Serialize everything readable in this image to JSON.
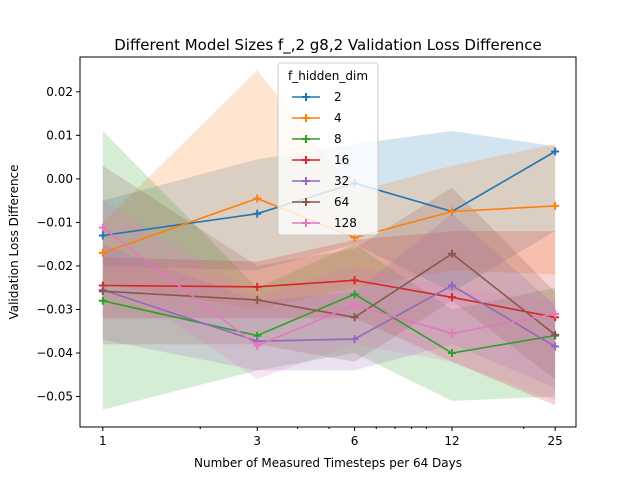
{
  "chart_data": {
    "type": "line",
    "title": "Different Model Sizes f_,2 g8,2 Validation Loss Difference",
    "xlabel": "Number of Measured Timesteps per 64 Days",
    "ylabel": "Validation Loss Difference",
    "xscale": "log",
    "x": [
      1,
      3,
      6,
      12,
      25
    ],
    "xticks": [
      "1",
      "3",
      "6",
      "12",
      "25"
    ],
    "ylim": [
      -0.057,
      0.028
    ],
    "xlim": [
      0.85,
      29
    ],
    "yticks": [
      "0.02",
      "0.01",
      "0.00",
      "−0.01",
      "−0.02",
      "−0.03",
      "−0.04",
      "−0.05"
    ],
    "ytick_values": [
      0.02,
      0.01,
      0.0,
      -0.01,
      -0.02,
      -0.03,
      -0.04,
      -0.05
    ],
    "grid": false,
    "legend": {
      "title": "f_hidden_dim",
      "placement": "top-center"
    },
    "series": [
      {
        "name": "2",
        "color": "#1f77b4",
        "values": [
          -0.013,
          -0.008,
          -0.001,
          -0.0075,
          0.0063
        ],
        "lower": [
          -0.02,
          -0.021,
          -0.015,
          -0.026,
          -0.012
        ],
        "upper": [
          -0.005,
          0.0045,
          0.008,
          0.011,
          0.0075
        ]
      },
      {
        "name": "4",
        "color": "#ff7f0e",
        "values": [
          -0.017,
          -0.0045,
          -0.0135,
          -0.0075,
          -0.0062
        ],
        "lower": [
          -0.024,
          -0.03,
          -0.025,
          -0.021,
          -0.022
        ],
        "upper": [
          -0.01,
          0.025,
          -0.003,
          0.003,
          0.008
        ]
      },
      {
        "name": "8",
        "color": "#2ca02c",
        "values": [
          -0.028,
          -0.036,
          -0.0265,
          -0.04,
          -0.036
        ],
        "lower": [
          -0.053,
          -0.044,
          -0.04,
          -0.051,
          -0.05
        ],
        "upper": [
          0.011,
          -0.025,
          -0.015,
          -0.03,
          -0.025
        ]
      },
      {
        "name": "16",
        "color": "#d62728",
        "values": [
          -0.0245,
          -0.0248,
          -0.0233,
          -0.0272,
          -0.0318
        ],
        "lower": [
          -0.032,
          -0.032,
          -0.032,
          -0.042,
          -0.052
        ],
        "upper": [
          -0.018,
          -0.019,
          -0.014,
          -0.012,
          -0.012
        ]
      },
      {
        "name": "32",
        "color": "#9467bd",
        "values": [
          -0.0255,
          -0.0373,
          -0.0368,
          -0.0245,
          -0.0385
        ],
        "lower": [
          -0.037,
          -0.044,
          -0.044,
          -0.038,
          -0.048
        ],
        "upper": [
          -0.015,
          -0.028,
          -0.026,
          -0.008,
          -0.029
        ]
      },
      {
        "name": "64",
        "color": "#8c564b",
        "values": [
          -0.0258,
          -0.0278,
          -0.0318,
          -0.0172,
          -0.0358
        ],
        "lower": [
          -0.038,
          -0.038,
          -0.042,
          -0.028,
          -0.046
        ],
        "upper": [
          0.003,
          -0.02,
          -0.016,
          -0.002,
          -0.026
        ]
      },
      {
        "name": "128",
        "color": "#e377c2",
        "values": [
          -0.0112,
          -0.0383,
          -0.029,
          -0.0355,
          -0.031
        ],
        "lower": [
          -0.022,
          -0.046,
          -0.038,
          -0.042,
          -0.051
        ],
        "upper": [
          -0.005,
          -0.027,
          -0.02,
          -0.025,
          -0.028
        ]
      }
    ]
  }
}
